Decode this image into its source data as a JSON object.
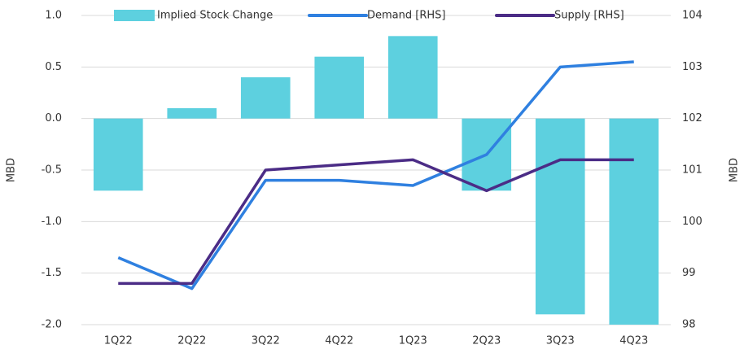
{
  "chart_data": {
    "type": "bar_line",
    "categories": [
      "1Q22",
      "2Q22",
      "3Q22",
      "4Q22",
      "1Q23",
      "2Q23",
      "3Q23",
      "4Q23"
    ],
    "series": [
      {
        "name": "Implied Stock Change",
        "type": "bar",
        "color": "#5dd0df",
        "values": [
          -0.7,
          0.1,
          0.4,
          0.6,
          0.8,
          -0.7,
          -1.9,
          -2.0
        ]
      },
      {
        "name": "Demand [RHS]",
        "type": "line",
        "axis": "y2",
        "color": "#2f80e0",
        "values": [
          99.3,
          98.7,
          100.8,
          100.8,
          100.7,
          101.3,
          103.0,
          103.1
        ]
      },
      {
        "name": "Supply [RHS]",
        "type": "line",
        "axis": "y2",
        "color": "#4b2c86",
        "values": [
          98.8,
          98.8,
          101.0,
          101.1,
          101.2,
          100.6,
          101.2,
          101.2
        ]
      }
    ],
    "ylabel": "MBD",
    "y2label": "MBD",
    "ylim": [
      -2,
      1
    ],
    "yticks": [
      {
        "value": -2,
        "label": "-2.0"
      },
      -1.5,
      {
        "value": -1,
        "label": "-1.0"
      },
      -0.5,
      {
        "value": 0,
        "label": "0.0"
      },
      0.5,
      {
        "value": 1,
        "label": "1.0"
      }
    ],
    "y2lim": [
      98,
      104
    ],
    "y2ticks": [
      98,
      99,
      100,
      101,
      102,
      103,
      104
    ],
    "grid": true,
    "legend": "top"
  }
}
